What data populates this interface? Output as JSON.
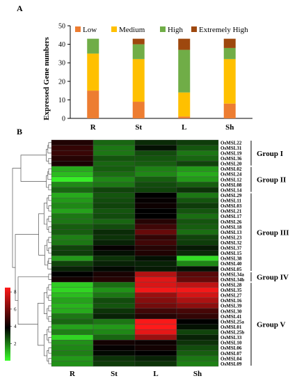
{
  "panel_a_label": "A",
  "panel_b_label": "B",
  "chart_data": [
    {
      "type": "bar",
      "stacked": true,
      "categories": [
        "R",
        "St",
        "L",
        "Sh"
      ],
      "series": [
        {
          "name": "Low",
          "color": "#ED7D31",
          "values": [
            15,
            9,
            1,
            8
          ]
        },
        {
          "name": "Medium",
          "color": "#FFC000",
          "values": [
            20,
            23,
            13,
            24
          ]
        },
        {
          "name": "High",
          "color": "#70AD47",
          "values": [
            8,
            8,
            23,
            6
          ]
        },
        {
          "name": "Extremely High",
          "color": "#9E480E",
          "values": [
            0,
            3,
            6,
            5
          ]
        }
      ],
      "ylabel": "Expressed Gene numbers",
      "ylim": [
        0,
        50
      ],
      "yticks": [
        0,
        10,
        20,
        30,
        40,
        50
      ],
      "legend_position": "top",
      "grid": false
    },
    {
      "type": "heatmap",
      "columns": [
        "R",
        "St",
        "L",
        "Sh"
      ],
      "rows": [
        "OsMSL22",
        "OsMSL31",
        "OsMSL19",
        "OsMSL36",
        "OsMSL20",
        "OsMSL02",
        "OsMSL24",
        "OsMSL12",
        "OsMSL08",
        "OsMSL14",
        "OsMSL29",
        "OsMSL11",
        "OsMSL03",
        "OsMSL21",
        "OsMSL17",
        "OsMSL26",
        "OsMSL18",
        "OsMSL13",
        "OsMSL23",
        "OsMSL32",
        "OsMSL37",
        "OsMSL15",
        "OsMSL38",
        "OsMSL40",
        "OsMSL05",
        "OsMSL34a",
        "OsMSL34b",
        "OsMSL28",
        "OsMSL35",
        "OsMSL27",
        "OsMSL16",
        "OsMSL39",
        "OsMSL30",
        "OsMSL41",
        "OsMSL25a",
        "OsMSL01",
        "OsMSL25b",
        "OsMSL33",
        "OsMSL10",
        "OsMSL06",
        "OsMSL07",
        "OsMSL04",
        "OsMSL09"
      ],
      "values": [
        [
          4.5,
          2.8,
          3.5,
          3.3
        ],
        [
          4.8,
          2.6,
          3.8,
          3.0
        ],
        [
          4.9,
          2.6,
          3.1,
          2.6
        ],
        [
          4.6,
          3.0,
          3.0,
          2.8
        ],
        [
          4.4,
          2.8,
          2.9,
          3.2
        ],
        [
          2.0,
          2.9,
          2.5,
          2.2
        ],
        [
          1.8,
          2.7,
          2.4,
          2.0
        ],
        [
          1.2,
          2.4,
          2.9,
          2.2
        ],
        [
          2.4,
          2.6,
          3.1,
          2.9
        ],
        [
          2.8,
          3.2,
          3.2,
          3.4
        ],
        [
          2.0,
          3.0,
          4.0,
          2.6
        ],
        [
          2.2,
          3.1,
          4.1,
          3.0
        ],
        [
          2.4,
          3.2,
          4.2,
          3.3
        ],
        [
          2.1,
          3.0,
          4.0,
          3.0
        ],
        [
          2.6,
          3.1,
          4.0,
          2.7
        ],
        [
          2.6,
          2.8,
          4.6,
          3.0
        ],
        [
          2.9,
          3.1,
          5.0,
          2.9
        ],
        [
          2.9,
          3.5,
          5.6,
          2.7
        ],
        [
          2.5,
          3.4,
          4.8,
          3.2
        ],
        [
          2.6,
          3.6,
          5.0,
          3.3
        ],
        [
          3.2,
          4.1,
          4.6,
          3.7
        ],
        [
          3.3,
          3.8,
          4.5,
          3.5
        ],
        [
          2.2,
          3.4,
          3.8,
          1.4
        ],
        [
          3.2,
          3.6,
          3.6,
          2.4
        ],
        [
          3.6,
          3.9,
          3.7,
          3.8
        ],
        [
          4.0,
          4.4,
          6.8,
          5.4
        ],
        [
          4.3,
          4.6,
          7.5,
          5.6
        ],
        [
          1.6,
          2.7,
          7.4,
          7.0
        ],
        [
          1.5,
          2.3,
          7.8,
          7.8
        ],
        [
          1.8,
          2.6,
          6.4,
          7.3
        ],
        [
          2.1,
          3.1,
          6.1,
          6.7
        ],
        [
          1.9,
          3.0,
          5.8,
          6.2
        ],
        [
          2.0,
          3.4,
          5.0,
          5.1
        ],
        [
          2.6,
          3.6,
          4.6,
          4.8
        ],
        [
          2.8,
          2.6,
          7.9,
          4.0
        ],
        [
          2.1,
          2.2,
          8.0,
          3.8
        ],
        [
          2.5,
          2.4,
          7.6,
          3.2
        ],
        [
          1.5,
          2.8,
          6.4,
          3.6
        ],
        [
          2.3,
          4.3,
          4.2,
          3.4
        ],
        [
          2.4,
          4.1,
          4.3,
          3.1
        ],
        [
          2.5,
          3.9,
          4.0,
          2.9
        ],
        [
          2.2,
          3.4,
          3.6,
          2.6
        ],
        [
          2.3,
          3.3,
          3.4,
          2.5
        ]
      ],
      "groups": [
        {
          "name": "Group I",
          "start": 0,
          "end": 4
        },
        {
          "name": "Group II",
          "start": 5,
          "end": 9
        },
        {
          "name": "Group III",
          "start": 10,
          "end": 24
        },
        {
          "name": "Group IV",
          "start": 25,
          "end": 26
        },
        {
          "name": "Group V",
          "start": 27,
          "end": 42
        }
      ],
      "color_scale": {
        "min": 0,
        "max": 8.5,
        "low": "#3BFF2A",
        "mid": "#000000",
        "high": "#FF1A1A",
        "ticks": [
          2,
          4,
          6,
          8
        ]
      }
    }
  ]
}
